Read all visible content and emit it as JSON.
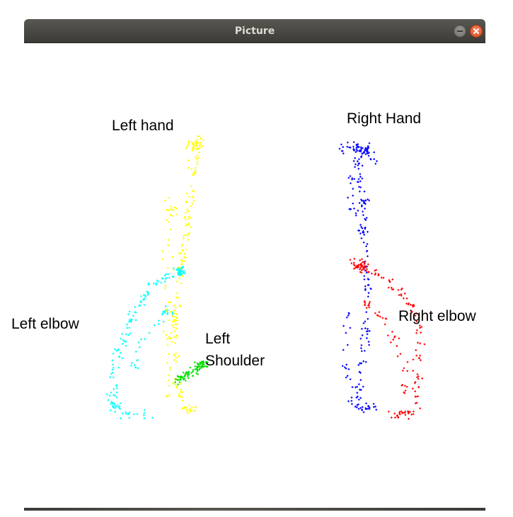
{
  "window": {
    "title": "Picture",
    "controls": {
      "minimize": "minimize-icon",
      "close": "close-icon"
    },
    "titlebar_color": "#3c3b37",
    "close_color": "#e95420"
  },
  "labels": {
    "left_hand": "Left hand",
    "right_hand": "Right Hand",
    "left_elbow": "Left elbow",
    "right_elbow": "Right elbow",
    "left_shoulder": "Left\nShoulder"
  },
  "point_colors": {
    "left_hand": "#ffff00",
    "left_elbow": "#00ffff",
    "left_shoulder": "#00e000",
    "right_hand": "#0000ff",
    "right_elbow": "#ff0000"
  }
}
